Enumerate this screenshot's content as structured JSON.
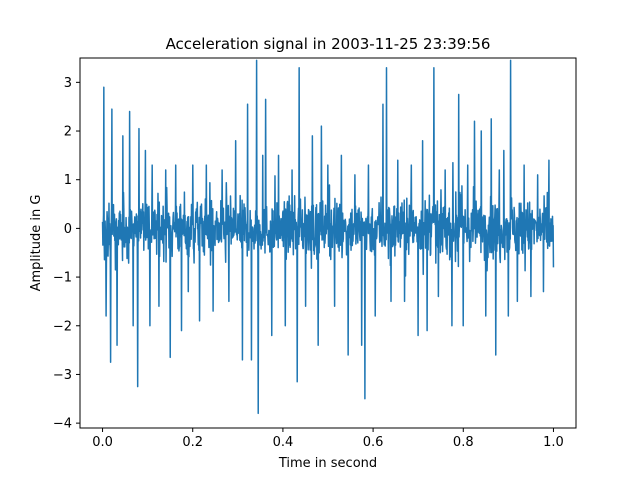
{
  "chart_data": {
    "type": "line",
    "title": "Acceleration signal in 2003-11-25 23:39:56",
    "xlabel": "Time in second",
    "ylabel": "Amplitude in G",
    "xlim": [
      -0.05,
      1.05
    ],
    "ylim": [
      -4.1,
      3.5
    ],
    "xticks": [
      0.0,
      0.2,
      0.4,
      0.6,
      0.8,
      1.0
    ],
    "xtick_labels": [
      "0.0",
      "0.2",
      "0.4",
      "0.6",
      "0.8",
      "1.0"
    ],
    "yticks": [
      -4,
      -3,
      -2,
      -1,
      0,
      1,
      2,
      3
    ],
    "ytick_labels": [
      "−4",
      "−3",
      "−2",
      "−1",
      "0",
      "1",
      "2",
      "3"
    ],
    "grid": false,
    "legend": "none",
    "series_color": "#1f77b4",
    "x_range": [
      0.0,
      1.0
    ],
    "typical_band": [
      -1.1,
      1.1
    ],
    "spikes": [
      {
        "x": 0.003,
        "y": 2.9
      },
      {
        "x": 0.008,
        "y": -1.8
      },
      {
        "x": 0.018,
        "y": -2.75
      },
      {
        "x": 0.021,
        "y": 2.45
      },
      {
        "x": 0.032,
        "y": -2.4
      },
      {
        "x": 0.045,
        "y": 1.9
      },
      {
        "x": 0.06,
        "y": 2.4
      },
      {
        "x": 0.068,
        "y": -2.0
      },
      {
        "x": 0.078,
        "y": -3.25
      },
      {
        "x": 0.081,
        "y": 2.05
      },
      {
        "x": 0.095,
        "y": 1.6
      },
      {
        "x": 0.105,
        "y": -2.0
      },
      {
        "x": 0.11,
        "y": 1.3
      },
      {
        "x": 0.125,
        "y": -1.6
      },
      {
        "x": 0.14,
        "y": 1.2
      },
      {
        "x": 0.15,
        "y": -2.65
      },
      {
        "x": 0.162,
        "y": 1.3
      },
      {
        "x": 0.175,
        "y": -2.1
      },
      {
        "x": 0.19,
        "y": -1.3
      },
      {
        "x": 0.2,
        "y": 1.3
      },
      {
        "x": 0.215,
        "y": -1.9
      },
      {
        "x": 0.23,
        "y": 1.3
      },
      {
        "x": 0.245,
        "y": -1.7
      },
      {
        "x": 0.265,
        "y": 1.2
      },
      {
        "x": 0.28,
        "y": -1.5
      },
      {
        "x": 0.295,
        "y": 1.8
      },
      {
        "x": 0.31,
        "y": -2.7
      },
      {
        "x": 0.322,
        "y": 2.55
      },
      {
        "x": 0.33,
        "y": -2.7
      },
      {
        "x": 0.342,
        "y": 3.45
      },
      {
        "x": 0.345,
        "y": -3.8
      },
      {
        "x": 0.355,
        "y": 1.5
      },
      {
        "x": 0.362,
        "y": 2.65
      },
      {
        "x": 0.375,
        "y": -2.2
      },
      {
        "x": 0.39,
        "y": 1.5
      },
      {
        "x": 0.405,
        "y": -2.0
      },
      {
        "x": 0.42,
        "y": 1.2
      },
      {
        "x": 0.432,
        "y": -3.15
      },
      {
        "x": 0.436,
        "y": 3.3
      },
      {
        "x": 0.45,
        "y": -1.6
      },
      {
        "x": 0.465,
        "y": 1.9
      },
      {
        "x": 0.478,
        "y": -2.4
      },
      {
        "x": 0.485,
        "y": 2.1
      },
      {
        "x": 0.5,
        "y": 1.3
      },
      {
        "x": 0.515,
        "y": -1.6
      },
      {
        "x": 0.53,
        "y": 1.5
      },
      {
        "x": 0.545,
        "y": -2.6
      },
      {
        "x": 0.56,
        "y": 1.1
      },
      {
        "x": 0.575,
        "y": -2.4
      },
      {
        "x": 0.582,
        "y": -3.5
      },
      {
        "x": 0.59,
        "y": 1.3
      },
      {
        "x": 0.605,
        "y": -1.8
      },
      {
        "x": 0.622,
        "y": 2.55
      },
      {
        "x": 0.63,
        "y": 3.3
      },
      {
        "x": 0.64,
        "y": -1.5
      },
      {
        "x": 0.655,
        "y": 1.4
      },
      {
        "x": 0.67,
        "y": -1.5
      },
      {
        "x": 0.685,
        "y": 1.3
      },
      {
        "x": 0.7,
        "y": -2.2
      },
      {
        "x": 0.71,
        "y": 1.8
      },
      {
        "x": 0.72,
        "y": -2.1
      },
      {
        "x": 0.735,
        "y": 3.3
      },
      {
        "x": 0.745,
        "y": -1.4
      },
      {
        "x": 0.76,
        "y": 1.2
      },
      {
        "x": 0.775,
        "y": -2.0
      },
      {
        "x": 0.79,
        "y": 2.75
      },
      {
        "x": 0.8,
        "y": -2.0
      },
      {
        "x": 0.81,
        "y": 1.3
      },
      {
        "x": 0.825,
        "y": 2.2
      },
      {
        "x": 0.84,
        "y": 2.0
      },
      {
        "x": 0.85,
        "y": -1.8
      },
      {
        "x": 0.862,
        "y": 2.25
      },
      {
        "x": 0.872,
        "y": -2.6
      },
      {
        "x": 0.88,
        "y": 1.2
      },
      {
        "x": 0.89,
        "y": 1.6
      },
      {
        "x": 0.9,
        "y": -1.8
      },
      {
        "x": 0.905,
        "y": 3.45
      },
      {
        "x": 0.92,
        "y": -1.5
      },
      {
        "x": 0.935,
        "y": 1.3
      },
      {
        "x": 0.95,
        "y": -1.4
      },
      {
        "x": 0.965,
        "y": 1.1
      },
      {
        "x": 0.978,
        "y": -1.3
      },
      {
        "x": 0.99,
        "y": 1.4
      },
      {
        "x": 1.0,
        "y": -0.8
      }
    ]
  }
}
